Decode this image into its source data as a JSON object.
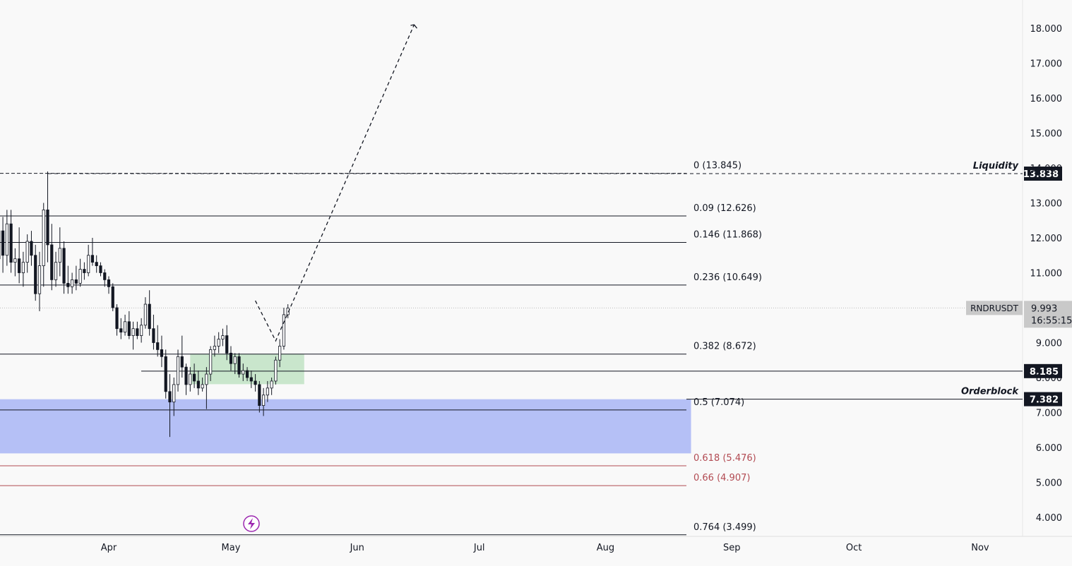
{
  "chart_data": {
    "type": "candlestick",
    "symbol": "RNDRUSDT",
    "last_price": "9.993",
    "countdown": "16:55:15",
    "y_axis": {
      "ticks": [
        "4.000",
        "5.000",
        "6.000",
        "7.000",
        "8.000",
        "9.000",
        "11.000",
        "12.000",
        "13.000",
        "14.000",
        "15.000",
        "16.000",
        "17.000",
        "18.000"
      ],
      "range": [
        3.2,
        18.3
      ]
    },
    "x_axis": {
      "labels": [
        "Apr",
        "May",
        "Jun",
        "Jul",
        "Aug",
        "Sep",
        "Oct",
        "Nov"
      ],
      "range": [
        "2024-03-01",
        "2024-11-13"
      ]
    },
    "fib_levels": [
      {
        "ratio": "0",
        "price": 13.845,
        "label": "0 (13.845)",
        "color": "#131722"
      },
      {
        "ratio": "0.09",
        "price": 12.626,
        "label": "0.09 (12.626)",
        "color": "#131722"
      },
      {
        "ratio": "0.146",
        "price": 11.868,
        "label": "0.146 (11.868)",
        "color": "#131722"
      },
      {
        "ratio": "0.236",
        "price": 10.649,
        "label": "0.236 (10.649)",
        "color": "#131722"
      },
      {
        "ratio": "0.382",
        "price": 8.672,
        "label": "0.382 (8.672)",
        "color": "#131722"
      },
      {
        "ratio": "0.5",
        "price": 7.074,
        "label": "0.5 (7.074)",
        "color": "#131722"
      },
      {
        "ratio": "0.618",
        "price": 5.476,
        "label": "0.618 (5.476)",
        "color": "#b24a52"
      },
      {
        "ratio": "0.66",
        "price": 4.907,
        "label": "0.66 (4.907)",
        "color": "#b24a52"
      },
      {
        "ratio": "0.764",
        "price": 3.499,
        "label": "0.764 (3.499)",
        "color": "#131722"
      }
    ],
    "price_tags": [
      {
        "value": "13.838",
        "price": 13.838
      },
      {
        "value": "8.185",
        "price": 8.185
      },
      {
        "value": "7.382",
        "price": 7.382
      }
    ],
    "annotations": [
      {
        "text": "Liquidity",
        "price": 13.838
      },
      {
        "text": "Orderblock",
        "price": 7.382
      }
    ],
    "zones": [
      {
        "name": "orderblock",
        "from_date": "2024-03-01",
        "to_date": "2024-08-22",
        "low": 5.83,
        "high": 7.38,
        "color": "#b1bdf6"
      },
      {
        "name": "fvg",
        "from_date": "2024-04-21",
        "to_date": "2024-05-19",
        "low": 7.81,
        "high": 8.68,
        "color": "#c6e5c9"
      }
    ],
    "projection": [
      {
        "date": "2024-05-07",
        "price": 10.2
      },
      {
        "date": "2024-05-12",
        "price": 9.05
      },
      {
        "date": "2024-06-15",
        "price": 18.1
      }
    ],
    "candles": [
      {
        "d": "2024-03-01",
        "o": 7.1,
        "h": 7.3,
        "l": 6.6,
        "c": 6.9
      },
      {
        "d": "2024-03-02",
        "o": 6.9,
        "h": 9.4,
        "l": 6.8,
        "c": 9.2
      },
      {
        "d": "2024-03-03",
        "o": 9.2,
        "h": 10.6,
        "l": 8.9,
        "c": 10.3
      },
      {
        "d": "2024-03-04",
        "o": 10.3,
        "h": 11.6,
        "l": 10.0,
        "c": 11.4
      },
      {
        "d": "2024-03-05",
        "o": 11.4,
        "h": 12.7,
        "l": 10.9,
        "c": 12.2
      },
      {
        "d": "2024-03-06",
        "o": 12.2,
        "h": 12.6,
        "l": 11.0,
        "c": 11.5
      },
      {
        "d": "2024-03-07",
        "o": 11.5,
        "h": 12.8,
        "l": 11.2,
        "c": 12.4
      },
      {
        "d": "2024-03-08",
        "o": 12.4,
        "h": 12.8,
        "l": 11.0,
        "c": 11.3
      },
      {
        "d": "2024-03-09",
        "o": 11.3,
        "h": 11.7,
        "l": 10.9,
        "c": 11.4
      },
      {
        "d": "2024-03-10",
        "o": 11.4,
        "h": 12.3,
        "l": 10.7,
        "c": 11.0
      },
      {
        "d": "2024-03-11",
        "o": 11.0,
        "h": 11.6,
        "l": 10.6,
        "c": 11.3
      },
      {
        "d": "2024-03-12",
        "o": 11.3,
        "h": 12.1,
        "l": 11.0,
        "c": 11.9
      },
      {
        "d": "2024-03-13",
        "o": 11.9,
        "h": 12.2,
        "l": 11.2,
        "c": 11.5
      },
      {
        "d": "2024-03-14",
        "o": 11.5,
        "h": 11.8,
        "l": 10.2,
        "c": 10.4
      },
      {
        "d": "2024-03-15",
        "o": 10.4,
        "h": 11.6,
        "l": 9.9,
        "c": 11.2
      },
      {
        "d": "2024-03-16",
        "o": 11.2,
        "h": 13.0,
        "l": 10.6,
        "c": 12.8
      },
      {
        "d": "2024-03-17",
        "o": 12.8,
        "h": 13.9,
        "l": 11.3,
        "c": 11.8
      },
      {
        "d": "2024-03-18",
        "o": 11.8,
        "h": 12.4,
        "l": 10.5,
        "c": 10.8
      },
      {
        "d": "2024-03-19",
        "o": 10.8,
        "h": 11.6,
        "l": 10.6,
        "c": 11.3
      },
      {
        "d": "2024-03-20",
        "o": 11.3,
        "h": 12.3,
        "l": 10.9,
        "c": 11.7
      },
      {
        "d": "2024-03-21",
        "o": 11.7,
        "h": 11.9,
        "l": 10.4,
        "c": 10.7
      },
      {
        "d": "2024-03-22",
        "o": 10.7,
        "h": 11.2,
        "l": 10.4,
        "c": 10.6
      },
      {
        "d": "2024-03-23",
        "o": 10.6,
        "h": 11.0,
        "l": 10.4,
        "c": 10.8
      },
      {
        "d": "2024-03-24",
        "o": 10.8,
        "h": 11.2,
        "l": 10.5,
        "c": 10.7
      },
      {
        "d": "2024-03-25",
        "o": 10.7,
        "h": 11.4,
        "l": 10.6,
        "c": 11.1
      },
      {
        "d": "2024-03-26",
        "o": 11.1,
        "h": 11.3,
        "l": 10.8,
        "c": 11.0
      },
      {
        "d": "2024-03-27",
        "o": 11.0,
        "h": 11.8,
        "l": 10.9,
        "c": 11.5
      },
      {
        "d": "2024-03-28",
        "o": 11.5,
        "h": 12.0,
        "l": 11.2,
        "c": 11.3
      },
      {
        "d": "2024-03-29",
        "o": 11.3,
        "h": 11.5,
        "l": 11.0,
        "c": 11.2
      },
      {
        "d": "2024-03-30",
        "o": 11.2,
        "h": 11.3,
        "l": 10.9,
        "c": 11.0
      },
      {
        "d": "2024-03-31",
        "o": 11.0,
        "h": 11.1,
        "l": 10.6,
        "c": 10.8
      },
      {
        "d": "2024-04-01",
        "o": 10.8,
        "h": 10.9,
        "l": 10.4,
        "c": 10.6
      },
      {
        "d": "2024-04-02",
        "o": 10.6,
        "h": 10.7,
        "l": 9.9,
        "c": 10.0
      },
      {
        "d": "2024-04-03",
        "o": 10.0,
        "h": 10.1,
        "l": 9.2,
        "c": 9.4
      },
      {
        "d": "2024-04-04",
        "o": 9.4,
        "h": 9.7,
        "l": 9.1,
        "c": 9.3
      },
      {
        "d": "2024-04-05",
        "o": 9.3,
        "h": 9.8,
        "l": 9.2,
        "c": 9.6
      },
      {
        "d": "2024-04-06",
        "o": 9.6,
        "h": 9.9,
        "l": 9.1,
        "c": 9.2
      },
      {
        "d": "2024-04-07",
        "o": 9.2,
        "h": 9.6,
        "l": 8.8,
        "c": 9.4
      },
      {
        "d": "2024-04-08",
        "o": 9.4,
        "h": 9.6,
        "l": 9.1,
        "c": 9.2
      },
      {
        "d": "2024-04-09",
        "o": 9.2,
        "h": 9.7,
        "l": 9.0,
        "c": 9.5
      },
      {
        "d": "2024-04-10",
        "o": 9.5,
        "h": 10.3,
        "l": 9.4,
        "c": 10.1
      },
      {
        "d": "2024-04-11",
        "o": 10.1,
        "h": 10.5,
        "l": 9.2,
        "c": 9.4
      },
      {
        "d": "2024-04-12",
        "o": 9.4,
        "h": 9.8,
        "l": 8.8,
        "c": 9.0
      },
      {
        "d": "2024-04-13",
        "o": 9.0,
        "h": 9.5,
        "l": 8.6,
        "c": 8.8
      },
      {
        "d": "2024-04-14",
        "o": 8.8,
        "h": 9.2,
        "l": 8.3,
        "c": 8.6
      },
      {
        "d": "2024-04-15",
        "o": 8.6,
        "h": 8.8,
        "l": 7.4,
        "c": 7.6
      },
      {
        "d": "2024-04-16",
        "o": 7.6,
        "h": 8.1,
        "l": 6.3,
        "c": 7.3
      },
      {
        "d": "2024-04-17",
        "o": 7.3,
        "h": 8.0,
        "l": 6.9,
        "c": 7.8
      },
      {
        "d": "2024-04-18",
        "o": 7.8,
        "h": 8.8,
        "l": 7.6,
        "c": 8.6
      },
      {
        "d": "2024-04-19",
        "o": 8.6,
        "h": 9.2,
        "l": 8.0,
        "c": 8.3
      },
      {
        "d": "2024-04-20",
        "o": 8.3,
        "h": 8.4,
        "l": 7.5,
        "c": 7.8
      },
      {
        "d": "2024-04-21",
        "o": 7.8,
        "h": 8.3,
        "l": 7.6,
        "c": 8.1
      },
      {
        "d": "2024-04-22",
        "o": 8.1,
        "h": 8.4,
        "l": 7.7,
        "c": 7.9
      },
      {
        "d": "2024-04-23",
        "o": 7.9,
        "h": 8.2,
        "l": 7.5,
        "c": 7.7
      },
      {
        "d": "2024-04-24",
        "o": 7.7,
        "h": 8.0,
        "l": 7.6,
        "c": 7.8
      },
      {
        "d": "2024-04-25",
        "o": 7.8,
        "h": 8.3,
        "l": 7.1,
        "c": 8.1
      },
      {
        "d": "2024-04-26",
        "o": 8.1,
        "h": 8.9,
        "l": 7.9,
        "c": 8.8
      },
      {
        "d": "2024-04-27",
        "o": 8.8,
        "h": 9.2,
        "l": 8.6,
        "c": 8.9
      },
      {
        "d": "2024-04-28",
        "o": 8.9,
        "h": 9.3,
        "l": 8.7,
        "c": 9.1
      },
      {
        "d": "2024-04-29",
        "o": 9.1,
        "h": 9.4,
        "l": 8.9,
        "c": 9.2
      },
      {
        "d": "2024-04-30",
        "o": 9.2,
        "h": 9.5,
        "l": 8.5,
        "c": 8.7
      },
      {
        "d": "2024-05-01",
        "o": 8.7,
        "h": 8.9,
        "l": 8.2,
        "c": 8.4
      },
      {
        "d": "2024-05-02",
        "o": 8.4,
        "h": 8.7,
        "l": 8.1,
        "c": 8.6
      },
      {
        "d": "2024-05-03",
        "o": 8.6,
        "h": 8.7,
        "l": 8.0,
        "c": 8.1
      },
      {
        "d": "2024-05-04",
        "o": 8.1,
        "h": 8.4,
        "l": 7.9,
        "c": 8.2
      },
      {
        "d": "2024-05-05",
        "o": 8.2,
        "h": 8.3,
        "l": 7.9,
        "c": 8.0
      },
      {
        "d": "2024-05-06",
        "o": 8.0,
        "h": 8.2,
        "l": 7.7,
        "c": 7.9
      },
      {
        "d": "2024-05-07",
        "o": 7.9,
        "h": 8.1,
        "l": 7.6,
        "c": 7.8
      },
      {
        "d": "2024-05-08",
        "o": 7.8,
        "h": 7.9,
        "l": 7.0,
        "c": 7.2
      },
      {
        "d": "2024-05-09",
        "o": 7.2,
        "h": 7.7,
        "l": 6.9,
        "c": 7.5
      },
      {
        "d": "2024-05-10",
        "o": 7.5,
        "h": 7.9,
        "l": 7.3,
        "c": 7.7
      },
      {
        "d": "2024-05-11",
        "o": 7.7,
        "h": 8.0,
        "l": 7.5,
        "c": 7.9
      },
      {
        "d": "2024-05-12",
        "o": 7.9,
        "h": 8.6,
        "l": 7.8,
        "c": 8.5
      },
      {
        "d": "2024-05-13",
        "o": 8.5,
        "h": 9.1,
        "l": 8.3,
        "c": 8.9
      },
      {
        "d": "2024-05-14",
        "o": 8.9,
        "h": 10.0,
        "l": 8.8,
        "c": 9.8
      },
      {
        "d": "2024-05-15",
        "o": 9.8,
        "h": 10.1,
        "l": 9.7,
        "c": 9.99
      }
    ]
  }
}
